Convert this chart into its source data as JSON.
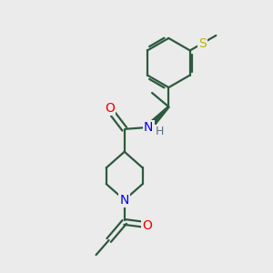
{
  "background_color": "#ebebeb",
  "bond_color": "#2d5a3d",
  "N_color": "#0000ee",
  "O_color": "#ee0000",
  "S_color": "#b8b800",
  "lw": 1.6,
  "figsize": [
    3.0,
    3.0
  ],
  "dpi": 100,
  "xlim": [
    0,
    10
  ],
  "ylim": [
    0,
    10
  ]
}
